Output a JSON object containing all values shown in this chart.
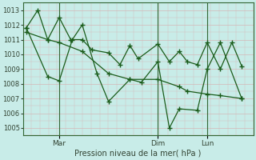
{
  "xlabel": "Pression niveau de la mer( hPa )",
  "bg_color": "#c8ece8",
  "grid_color": "#d4b8b8",
  "line_color": "#1a5c1a",
  "ylim": [
    1004.5,
    1013.5
  ],
  "yticks": [
    1005,
    1006,
    1007,
    1008,
    1009,
    1010,
    1011,
    1012,
    1013
  ],
  "xlim": [
    0,
    14.0
  ],
  "vlines": [
    2.2,
    8.2,
    11.2
  ],
  "vline_labels": [
    "Mar",
    "Dim",
    "Lun"
  ],
  "series1": {
    "x": [
      0.2,
      0.9,
      1.5,
      2.2,
      2.9,
      3.6,
      4.2,
      5.2,
      5.9,
      6.5,
      7.0,
      8.2,
      8.9,
      9.5,
      10.0,
      10.6,
      11.2,
      12.0,
      12.7,
      13.3
    ],
    "y": [
      1011.8,
      1013.0,
      1011.0,
      1012.5,
      1011.0,
      1011.0,
      1010.3,
      1010.1,
      1009.3,
      1010.6,
      1009.7,
      1010.7,
      1009.5,
      1010.2,
      1009.5,
      1009.3,
      1010.8,
      1009.0,
      1010.8,
      1009.2
    ]
  },
  "series2": {
    "x": [
      0.2,
      1.5,
      2.2,
      3.6,
      5.2,
      6.5,
      8.2,
      9.5,
      10.0,
      11.2,
      12.0,
      13.3
    ],
    "y": [
      1011.5,
      1011.0,
      1010.8,
      1010.2,
      1008.7,
      1008.3,
      1008.3,
      1007.8,
      1007.5,
      1007.3,
      1007.2,
      1007.0
    ]
  },
  "series3": {
    "x": [
      0.2,
      1.5,
      2.2,
      3.0,
      3.6,
      4.5,
      5.2,
      6.5,
      7.2,
      8.2,
      8.9,
      9.5,
      10.6,
      11.2,
      12.0,
      13.3
    ],
    "y": [
      1011.8,
      1008.5,
      1008.2,
      1011.0,
      1012.0,
      1008.7,
      1006.8,
      1008.3,
      1008.1,
      1009.5,
      1005.0,
      1006.3,
      1006.2,
      1009.0,
      1010.8,
      1007.0
    ]
  }
}
